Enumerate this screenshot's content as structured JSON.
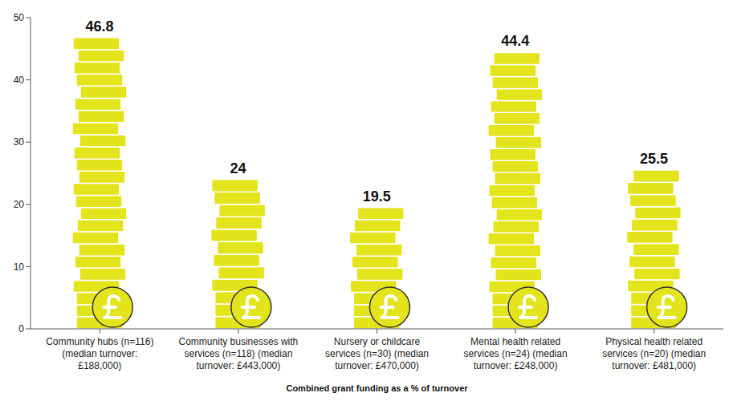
{
  "chart_data": {
    "type": "bar",
    "categories": [
      "Community hubs (n=116) (median turnover: £188,000)",
      "Community businesses with services (n=118) (median turnover: £443,000)",
      "Nursery or childcare services (n=30) (median turnover: £470,000)",
      "Mental health related services (n=24) (median turnover: £248,000)",
      "Physical health related services (n=20) (median turnover: £481,000)"
    ],
    "values": [
      46.8,
      24,
      19.5,
      44.4,
      25.5
    ],
    "color": "#e3e41b",
    "x_label": "Combined grant funding as a % of turnover",
    "ylim": [
      0,
      50
    ],
    "yticks": [
      0,
      10,
      20,
      30,
      40,
      50
    ],
    "grid": false,
    "data_labels": true
  }
}
